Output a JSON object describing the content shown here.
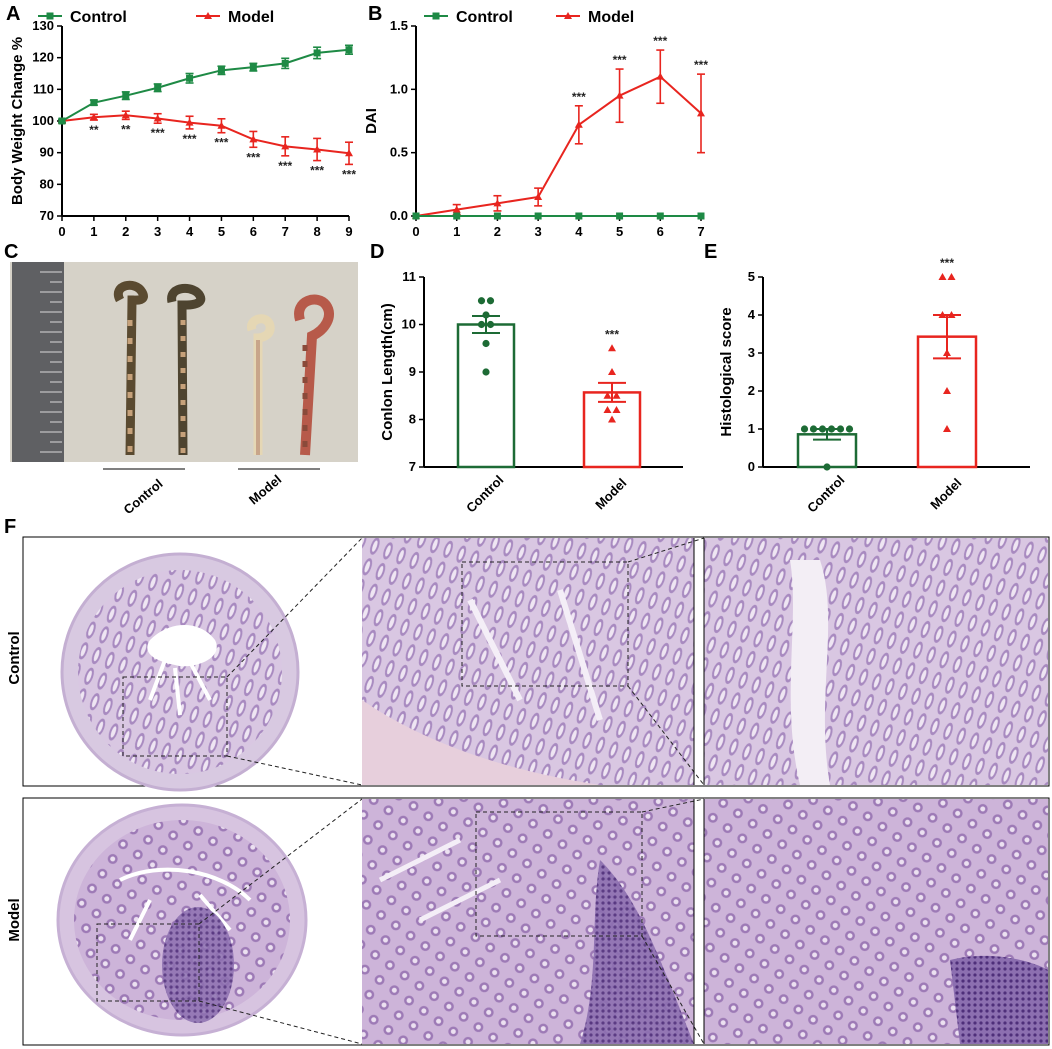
{
  "panel_labels": {
    "a": "A",
    "b": "B",
    "c": "C",
    "d": "D",
    "e": "E",
    "f": "F"
  },
  "colors": {
    "control": "#1e8a45",
    "model": "#e8251f",
    "control_bar": "#1d6b35",
    "model_bar": "#e8251f"
  },
  "chart_data": [
    {
      "id": "A",
      "type": "line",
      "x": [
        0,
        1,
        2,
        3,
        4,
        5,
        6,
        7,
        8,
        9
      ],
      "xlim": [
        0,
        9
      ],
      "ylim": [
        70,
        130
      ],
      "yticks": [
        70,
        80,
        90,
        100,
        110,
        120,
        130
      ],
      "ylabel": "Body Weight Change %",
      "xlabel": "",
      "legend_position": "top",
      "series": [
        {
          "name": "Control",
          "values": [
            100,
            105.8,
            108,
            110.5,
            113.5,
            116,
            117,
            118.2,
            121.5,
            122.5
          ],
          "err": [
            0.5,
            0.8,
            1.2,
            1.2,
            1.5,
            1.3,
            1.2,
            1.6,
            1.8,
            1.4
          ]
        },
        {
          "name": "Model",
          "values": [
            100,
            101.2,
            101.8,
            100.8,
            99.5,
            98.5,
            94.2,
            92,
            91,
            89.8
          ],
          "err": [
            0.5,
            0.9,
            1.3,
            1.5,
            2,
            2.2,
            2.5,
            3,
            3.5,
            3.5
          ],
          "annotations": [
            "",
            "**",
            "**",
            "***",
            "***",
            "***",
            "***",
            "***",
            "***",
            "***"
          ]
        }
      ]
    },
    {
      "id": "B",
      "type": "line",
      "x": [
        0,
        1,
        2,
        3,
        4,
        5,
        6,
        7
      ],
      "xlim": [
        0,
        7
      ],
      "ylim": [
        0,
        1.5
      ],
      "yticks": [
        "0.0",
        "0.5",
        "1.0",
        "1.5"
      ],
      "ylabel": "DAI",
      "xlabel": "",
      "legend_position": "top",
      "series": [
        {
          "name": "Control",
          "values": [
            0,
            0,
            0,
            0,
            0,
            0,
            0,
            0
          ],
          "err": [
            0,
            0,
            0,
            0,
            0,
            0,
            0,
            0
          ]
        },
        {
          "name": "Model",
          "values": [
            0,
            0.05,
            0.1,
            0.15,
            0.72,
            0.95,
            1.1,
            0.81
          ],
          "err": [
            0,
            0.04,
            0.06,
            0.07,
            0.15,
            0.21,
            0.21,
            0.31
          ],
          "annotations": [
            "",
            "",
            "",
            "",
            "***",
            "***",
            "***",
            "***"
          ]
        }
      ]
    },
    {
      "id": "D",
      "type": "bar",
      "categories": [
        "Control",
        "Model"
      ],
      "values": [
        10.0,
        8.57
      ],
      "err": [
        0.18,
        0.2
      ],
      "points": [
        [
          10.5,
          10.5,
          10.2,
          10.0,
          10.0,
          9.6,
          9.0
        ],
        [
          9.5,
          9.0,
          8.5,
          8.5,
          8.2,
          8.2,
          8.0
        ]
      ],
      "ylim": [
        7,
        11
      ],
      "yticks": [
        7,
        8,
        9,
        10,
        11
      ],
      "ylabel": "Conlon Length(cm)",
      "annotations": [
        "",
        "***"
      ]
    },
    {
      "id": "E",
      "type": "bar",
      "categories": [
        "Control",
        "Model"
      ],
      "values": [
        0.86,
        3.43
      ],
      "err": [
        0.14,
        0.57
      ],
      "points": [
        [
          1,
          1,
          1,
          1,
          1,
          1,
          0
        ],
        [
          5,
          5,
          4,
          4,
          3,
          2,
          1
        ]
      ],
      "ylim": [
        0,
        5
      ],
      "yticks": [
        0,
        1,
        2,
        3,
        4,
        5
      ],
      "ylabel": "Histological score",
      "annotations": [
        "",
        "***"
      ]
    }
  ],
  "panel_c": {
    "group_labels": [
      "Control",
      "Model"
    ]
  },
  "panel_f": {
    "row_labels": [
      "Control",
      "Model"
    ]
  }
}
